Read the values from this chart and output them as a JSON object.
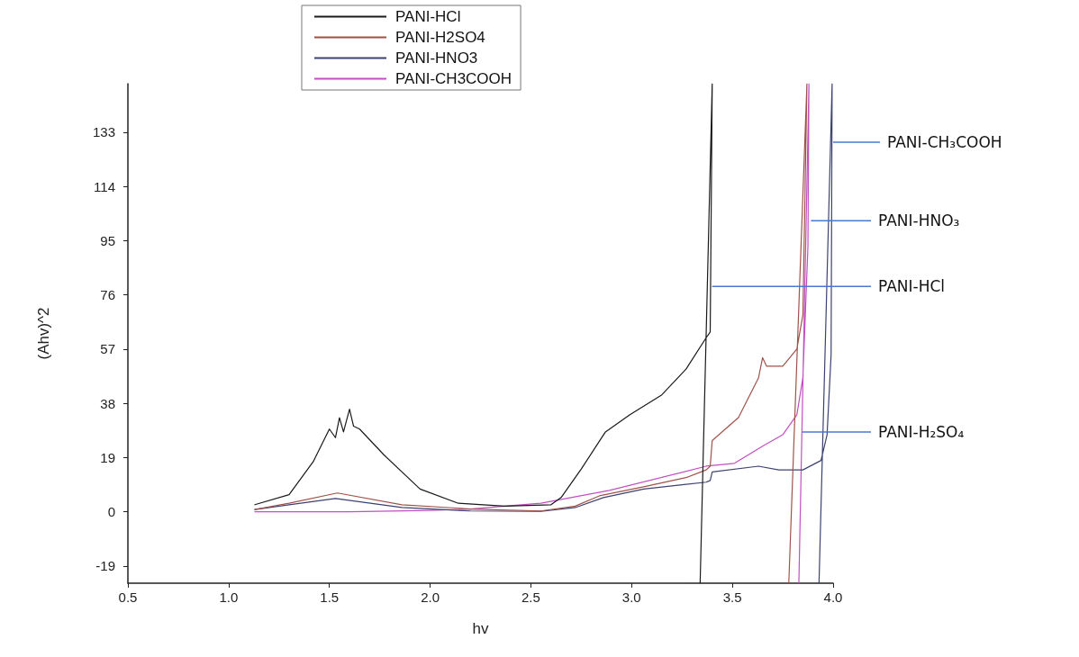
{
  "chart_data": {
    "type": "line",
    "xlabel": "hv",
    "ylabel": "(Ahv)^2",
    "xlim": [
      0.5,
      4.0
    ],
    "ylim": [
      -25,
      150
    ],
    "xticks": [
      {
        "value": 0.5,
        "label": "0.5"
      },
      {
        "value": 1,
        "label": "1.0"
      },
      {
        "value": 1.5,
        "label": "1.5"
      },
      {
        "value": 2,
        "label": "2.0"
      },
      {
        "value": 2.5,
        "label": "2.5"
      },
      {
        "value": 3,
        "label": "3.0"
      },
      {
        "value": 3.5,
        "label": "3.5"
      },
      {
        "value": 4,
        "label": "4.0"
      }
    ],
    "yticks": [
      -19,
      0,
      19,
      38,
      57,
      76,
      95,
      114,
      133
    ],
    "grid": false,
    "legend": "top",
    "marker": "none",
    "line_style": "solid",
    "series": [
      {
        "name": "PANI-HCl",
        "color": "#1a1a1a",
        "x": [
          1.13,
          1.3,
          1.42,
          1.5,
          1.53,
          1.55,
          1.57,
          1.6,
          1.62,
          1.65,
          1.77,
          1.95,
          2.14,
          2.37,
          2.6,
          2.65,
          2.75,
          2.87,
          2.99,
          3.15,
          3.27,
          3.37,
          3.39,
          3.4,
          3.34
        ],
        "values": [
          2.5,
          6,
          17.6,
          29,
          26,
          33,
          28,
          36,
          30,
          29,
          20,
          8,
          3,
          2,
          2.5,
          5,
          15,
          28,
          34,
          41,
          50,
          61,
          63,
          150,
          -25
        ]
      },
      {
        "name": "PANI-H2SO4",
        "color": "#a0524a",
        "x": [
          1.13,
          1.3,
          1.54,
          1.86,
          2.2,
          2.55,
          2.72,
          2.84,
          3.06,
          3.27,
          3.37,
          3.39,
          3.4,
          3.53,
          3.63,
          3.65,
          3.67,
          3.75,
          3.82,
          3.85,
          3.87,
          3.78
        ],
        "values": [
          0.8,
          3,
          6.6,
          2.5,
          1,
          0.3,
          2,
          5.6,
          8.8,
          12,
          14.7,
          16,
          25,
          33,
          47,
          54,
          51,
          51,
          57,
          69,
          150,
          -25
        ]
      },
      {
        "name": "PANI-HNO3",
        "color": "#3c4270",
        "x": [
          1.13,
          1.3,
          1.53,
          1.86,
          2.2,
          2.55,
          2.72,
          2.86,
          3.06,
          3.37,
          3.39,
          3.4,
          3.63,
          3.73,
          3.85,
          3.94,
          3.97,
          3.99,
          3.995,
          3.93
        ],
        "values": [
          0.8,
          2.5,
          4.7,
          1.5,
          0.3,
          0.2,
          1.5,
          5,
          8,
          10.4,
          11,
          14,
          16,
          14.7,
          14.7,
          18,
          27,
          55,
          150,
          -25
        ]
      },
      {
        "name": "PANI-CH3COOH",
        "color": "#c050c0",
        "x": [
          1.13,
          1.6,
          2.0,
          2.2,
          2.37,
          2.55,
          2.89,
          3.37,
          3.51,
          3.65,
          3.75,
          3.82,
          3.85,
          3.875,
          3.88,
          3.83
        ],
        "values": [
          0,
          0,
          0.5,
          1,
          2,
          3,
          7.5,
          16,
          17,
          23,
          27,
          34,
          47,
          93,
          150,
          -25
        ]
      }
    ],
    "annotations": [
      {
        "text": "PANI-CH₃COOH",
        "x": 4.0,
        "y": 129.5
      },
      {
        "text": "PANI-HNO₃",
        "x": 3.89,
        "y": 102
      },
      {
        "text": "PANI-HCl",
        "x": 3.4,
        "y": 79
      },
      {
        "text": "PANI-H₂SO₄",
        "x": 3.845,
        "y": 28
      }
    ]
  }
}
